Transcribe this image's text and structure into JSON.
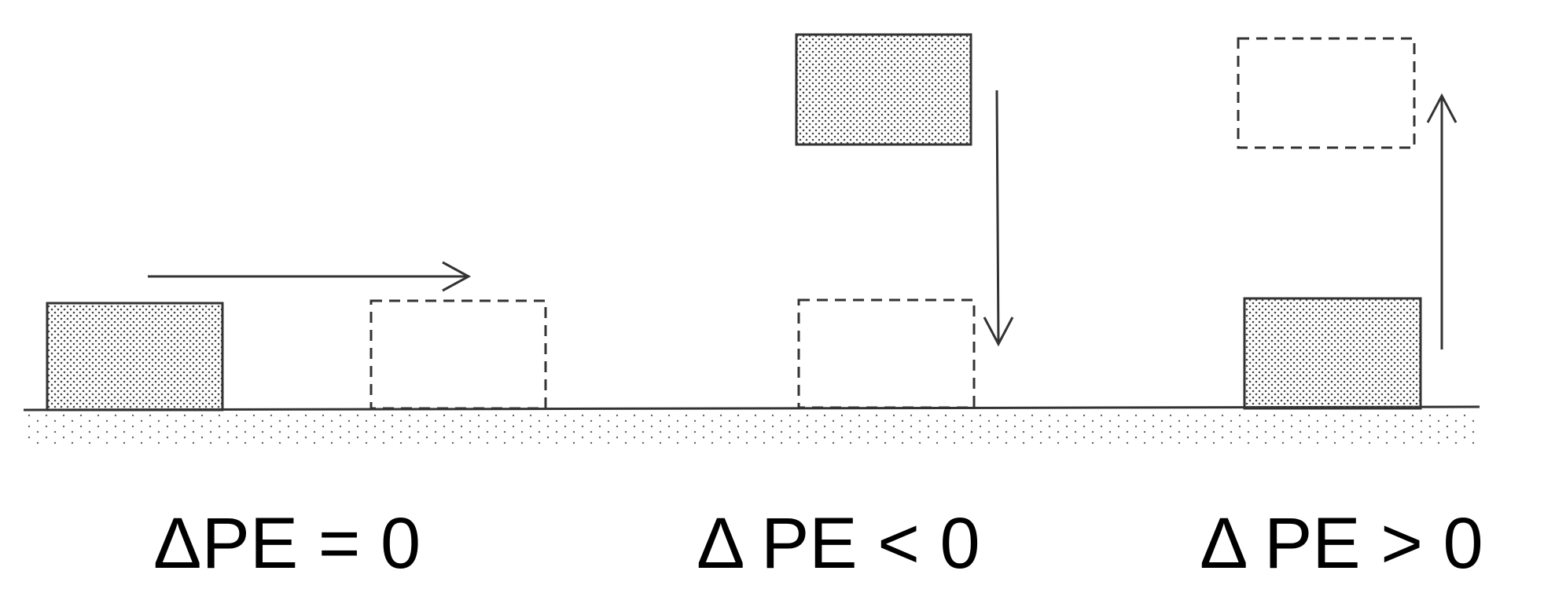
{
  "captions": {
    "horizontal": "ΔPE = 0",
    "downward": "Δ PE < 0",
    "upward": "Δ PE > 0"
  },
  "colors": {
    "ink": "#333333",
    "text": "#000000",
    "block_fill": "#ffffff",
    "stipple": "#444444"
  }
}
